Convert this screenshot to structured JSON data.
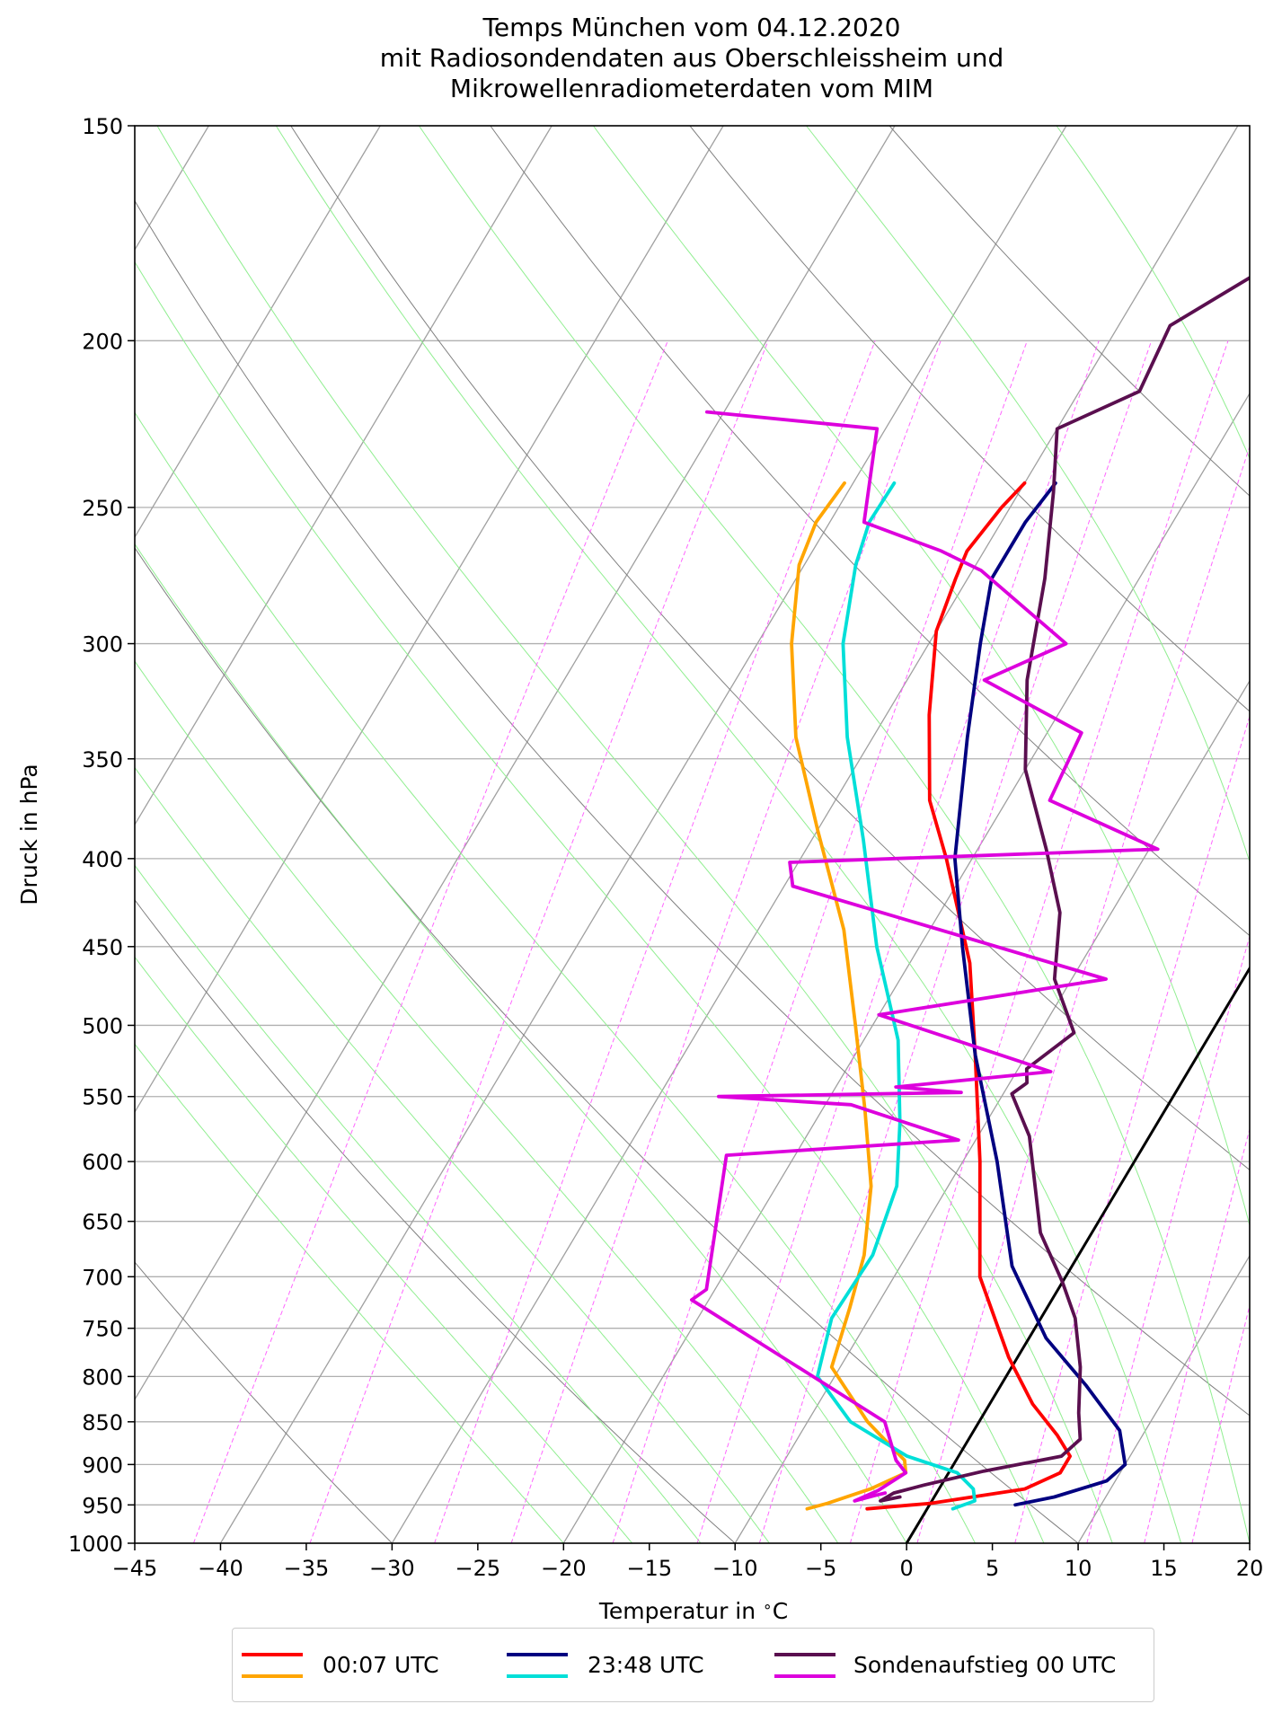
{
  "chart_data": {
    "type": "line",
    "title": [
      "Temps München vom 04.12.2020",
      "mit Radiosondendaten aus Oberschleissheim und",
      "Mikrowellenradiometerdaten vom MIM"
    ],
    "xlabel": "Temperatur in $^\\circ$C",
    "xlabel_parts": {
      "text": "Temperatur in ",
      "sup": "∘",
      "unit": "C"
    },
    "ylabel": "Druck in hPa",
    "xlim": [
      -45,
      20
    ],
    "ylim": [
      1000,
      150
    ],
    "y_scale": "log",
    "skew": "skew-T log-p",
    "grid": true,
    "x_ticks": [
      -45,
      -40,
      -35,
      -30,
      -25,
      -20,
      -15,
      -10,
      -5,
      0,
      5,
      10,
      15,
      20
    ],
    "x_tick_labels": [
      "−45",
      "−40",
      "−35",
      "−30",
      "−25",
      "−20",
      "−15",
      "−10",
      "−5",
      "0",
      "5",
      "10",
      "15",
      "20"
    ],
    "y_ticks": [
      150,
      200,
      250,
      300,
      350,
      400,
      450,
      500,
      550,
      600,
      650,
      700,
      750,
      800,
      850,
      900,
      950,
      1000
    ],
    "y_tick_labels": [
      "150",
      "200",
      "250",
      "300",
      "350",
      "400",
      "450",
      "500",
      "550",
      "600",
      "650",
      "700",
      "750",
      "800",
      "850",
      "900",
      "950",
      "1000"
    ],
    "colors": {
      "red": "#ff0000",
      "orange": "#ffa500",
      "navy": "#000080",
      "cyan": "#00dfd8",
      "purple": "#5a0f4f",
      "magenta": "#dd00dd",
      "isotherm": "#a0a0a0",
      "dry_adiabat": "#808080",
      "moist_adiabat": "#90ee90",
      "mixing_ratio": "#ff66ff",
      "zero_line": "#000000"
    },
    "series": [
      {
        "name": "00:07 UTC",
        "kind": "temperature",
        "color": "#ff0000",
        "points": [
          [
            -30.0,
            242
          ],
          [
            -30.5,
            250
          ],
          [
            -31.0,
            265
          ],
          [
            -30.7,
            275
          ],
          [
            -30.0,
            295
          ],
          [
            -27.5,
            330
          ],
          [
            -24.5,
            370
          ],
          [
            -21.5,
            400
          ],
          [
            -16.5,
            460
          ],
          [
            -13.0,
            520
          ],
          [
            -9.0,
            600
          ],
          [
            -5.0,
            700
          ],
          [
            -0.5,
            780
          ],
          [
            2.5,
            830
          ],
          [
            5.0,
            865
          ],
          [
            6.5,
            890
          ],
          [
            6.5,
            910
          ],
          [
            5.0,
            930
          ],
          [
            0.0,
            948
          ],
          [
            -3.5,
            955
          ]
        ]
      },
      {
        "name": "00:07 UTC",
        "kind": "dewpoint",
        "color": "#ffa500",
        "points": [
          [
            -40.5,
            242
          ],
          [
            -40.8,
            255
          ],
          [
            -40.3,
            270
          ],
          [
            -38.0,
            300
          ],
          [
            -34.5,
            340
          ],
          [
            -30.0,
            385
          ],
          [
            -25.0,
            440
          ],
          [
            -21.0,
            500
          ],
          [
            -17.5,
            560
          ],
          [
            -14.5,
            620
          ],
          [
            -12.5,
            680
          ],
          [
            -11.5,
            730
          ],
          [
            -10.5,
            790
          ],
          [
            -6.5,
            850
          ],
          [
            -3.0,
            895
          ],
          [
            -2.5,
            910
          ],
          [
            -4.0,
            930
          ],
          [
            -6.0,
            948
          ],
          [
            -7.0,
            955
          ]
        ]
      },
      {
        "name": "23:48 UTC",
        "kind": "temperature",
        "color": "#000080",
        "points": [
          [
            -28.2,
            242
          ],
          [
            -28.6,
            255
          ],
          [
            -28.6,
            275
          ],
          [
            -27.0,
            300
          ],
          [
            -24.5,
            340
          ],
          [
            -21.0,
            400
          ],
          [
            -17.5,
            450
          ],
          [
            -13.0,
            520
          ],
          [
            -8.0,
            600
          ],
          [
            -3.5,
            690
          ],
          [
            1.0,
            760
          ],
          [
            5.0,
            810
          ],
          [
            8.5,
            860
          ],
          [
            10.0,
            900
          ],
          [
            9.5,
            920
          ],
          [
            7.0,
            940
          ],
          [
            5.0,
            950
          ]
        ]
      },
      {
        "name": "23:48 UTC",
        "kind": "dewpoint",
        "color": "#00dfd8",
        "points": [
          [
            -37.6,
            242
          ],
          [
            -37.7,
            255
          ],
          [
            -37.0,
            270
          ],
          [
            -35.0,
            300
          ],
          [
            -31.5,
            340
          ],
          [
            -27.0,
            390
          ],
          [
            -22.5,
            450
          ],
          [
            -18.0,
            510
          ],
          [
            -15.0,
            570
          ],
          [
            -13.0,
            620
          ],
          [
            -12.0,
            680
          ],
          [
            -12.2,
            740
          ],
          [
            -11.0,
            800
          ],
          [
            -7.5,
            850
          ],
          [
            -3.0,
            890
          ],
          [
            0.5,
            910
          ],
          [
            2.0,
            930
          ],
          [
            2.5,
            945
          ],
          [
            1.5,
            955
          ]
        ]
      },
      {
        "name": "Sondenaufstieg 00 UTC",
        "kind": "temperature",
        "color": "#5a0f4f",
        "points": [
          [
            -18.5,
            150
          ],
          [
            -20.5,
            162
          ],
          [
            -22.0,
            176
          ],
          [
            -27.0,
            196
          ],
          [
            -26.5,
            214
          ],
          [
            -30.0,
            225
          ],
          [
            -28.0,
            245
          ],
          [
            -25.5,
            275
          ],
          [
            -23.0,
            315
          ],
          [
            -20.0,
            355
          ],
          [
            -16.0,
            395
          ],
          [
            -13.0,
            430
          ],
          [
            -11.0,
            470
          ],
          [
            -8.0,
            505
          ],
          [
            -9.5,
            530
          ],
          [
            -9.0,
            540
          ],
          [
            -9.5,
            548
          ],
          [
            -7.0,
            580
          ],
          [
            -3.0,
            660
          ],
          [
            0.0,
            705
          ],
          [
            2.0,
            740
          ],
          [
            4.0,
            790
          ],
          [
            5.5,
            840
          ],
          [
            6.5,
            870
          ],
          [
            6.0,
            890
          ],
          [
            2.0,
            908
          ],
          [
            -1.0,
            925
          ],
          [
            -2.5,
            935
          ],
          [
            -3.0,
            945
          ],
          [
            -2.0,
            940
          ]
        ]
      },
      {
        "name": "Sondenaufstieg 00 UTC",
        "kind": "dewpoint",
        "color": "#dd00dd",
        "points": [
          [
            -51.0,
            220
          ],
          [
            -40.5,
            225
          ],
          [
            -38.0,
            255
          ],
          [
            -32.5,
            265
          ],
          [
            -29.5,
            272
          ],
          [
            -22.0,
            300
          ],
          [
            -25.5,
            315
          ],
          [
            -18.0,
            338
          ],
          [
            -17.5,
            370
          ],
          [
            -9.5,
            395
          ],
          [
            -30.5,
            402
          ],
          [
            -29.5,
            415
          ],
          [
            -8.0,
            470
          ],
          [
            -20.0,
            493
          ],
          [
            -8.0,
            532
          ],
          [
            -16.5,
            543
          ],
          [
            -12.5,
            547
          ],
          [
            -26.5,
            550
          ],
          [
            -18.5,
            556
          ],
          [
            -11.0,
            583
          ],
          [
            -24.0,
            595
          ],
          [
            -20.5,
            712
          ],
          [
            -21.0,
            722
          ],
          [
            -5.5,
            850
          ],
          [
            -3.5,
            895
          ],
          [
            -2.5,
            910
          ],
          [
            -3.5,
            932
          ],
          [
            -4.5,
            945
          ],
          [
            -3.5,
            938
          ],
          [
            -3.0,
            935
          ]
        ]
      }
    ],
    "legend": {
      "placement": "bottom-center, below plot",
      "entries": [
        {
          "label": "00:07 UTC",
          "colors": [
            "#ff0000",
            "#ffa500"
          ]
        },
        {
          "label": "23:48 UTC",
          "colors": [
            "#000080",
            "#00dfd8"
          ]
        },
        {
          "label": "Sondenaufstieg 00 UTC",
          "colors": [
            "#5a0f4f",
            "#dd00dd"
          ]
        }
      ]
    }
  }
}
